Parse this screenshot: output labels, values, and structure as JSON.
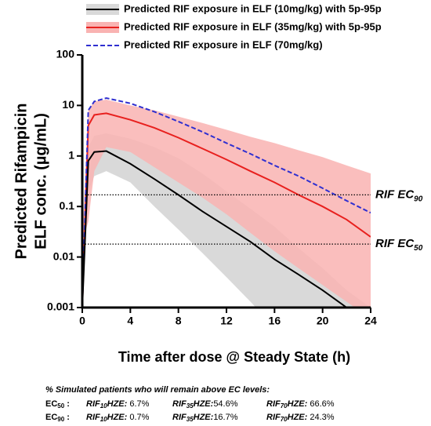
{
  "chart_data": {
    "type": "line",
    "ylabel": [
      "Predicted Rifampicin",
      "ELF conc. (µg/mL)"
    ],
    "xlabel": "Time after dose @ Steady State (h)",
    "log_y": true,
    "xlim": [
      0,
      24
    ],
    "xticks": [
      0,
      4,
      8,
      12,
      16,
      20,
      24
    ],
    "ylim": [
      0.001,
      100
    ],
    "yticks": [
      0.001,
      0.01,
      0.1,
      1,
      10,
      100
    ],
    "x": [
      0,
      0.5,
      1,
      2,
      4,
      6,
      8,
      10,
      12,
      14,
      16,
      18,
      20,
      22,
      24
    ],
    "series": [
      {
        "name": "Predicted RIF exposure in ELF (10mg/kg) with 5p-95p",
        "color": "#000000",
        "band_color": "#d9d9d9",
        "dash": false,
        "values": [
          0.001,
          0.8,
          1.2,
          1.25,
          0.7,
          0.35,
          0.17,
          0.08,
          0.04,
          0.02,
          0.009,
          0.0045,
          0.0022,
          0.001,
          null
        ],
        "lower": [
          0.001,
          0.2,
          0.4,
          0.5,
          0.3,
          0.1,
          0.035,
          0.012,
          0.004,
          0.0013,
          0.0004,
          0.00013,
          4e-05,
          1.3e-05,
          4e-06
        ],
        "upper": [
          0.001,
          1.5,
          2.5,
          2.8,
          2.2,
          1.5,
          0.9,
          0.45,
          0.2,
          0.09,
          0.04,
          0.015,
          0.006,
          0.0022,
          0.001
        ]
      },
      {
        "name": "Predicted RIF exposure in ELF (35mg/kg) with 5p-95p",
        "color": "#e8201e",
        "band_color": "#f9b3b2",
        "dash": false,
        "values": [
          0.001,
          4,
          6.5,
          7,
          5.2,
          3.6,
          2.3,
          1.4,
          0.85,
          0.5,
          0.3,
          0.17,
          0.1,
          0.055,
          0.025
        ],
        "lower": [
          0.02,
          0.05,
          0.5,
          1.5,
          1.2,
          0.6,
          0.3,
          0.15,
          0.07,
          0.03,
          0.013,
          0.006,
          0.0028,
          0.0013,
          0.0006
        ],
        "upper": [
          0.02,
          8,
          12,
          13,
          10,
          8,
          6,
          4.5,
          3.3,
          2.4,
          1.8,
          1.3,
          0.95,
          0.65,
          0.45
        ]
      },
      {
        "name": "Predicted RIF exposure in ELF (70mg/kg)",
        "color": "#2f2fd0",
        "dash": true,
        "values": [
          0.001,
          8,
          12,
          14,
          11,
          7.5,
          4.8,
          3,
          1.8,
          1.1,
          0.65,
          0.4,
          0.23,
          0.13,
          0.075
        ]
      }
    ],
    "reference_lines": [
      {
        "value": 0.17,
        "label": "RIF EC",
        "subscript": "90"
      },
      {
        "value": 0.018,
        "label": "RIF EC",
        "subscript": "50"
      }
    ]
  },
  "footer": {
    "title": "% Simulated patients who will remain above EC levels:",
    "rows": [
      {
        "label": "EC",
        "sub": "50",
        "colon": ":",
        "cells": [
          {
            "drug": "RIF",
            "sub": "10",
            "suffix": "HZE:",
            "value": " 6.7%"
          },
          {
            "drug": "RIF",
            "sub": "35",
            "suffix": "HZE:",
            "value": "54.6%"
          },
          {
            "drug": "RIF",
            "sub": "70",
            "suffix": "HZE:",
            "value": " 66.6%"
          }
        ]
      },
      {
        "label": "EC",
        "sub": "90",
        "colon": ":",
        "cells": [
          {
            "drug": "RIF",
            "sub": "10",
            "suffix": "HZE:",
            "value": " 0.7%"
          },
          {
            "drug": "RIF",
            "sub": "35",
            "suffix": "HZE:",
            "value": "16.7%"
          },
          {
            "drug": "RIF",
            "sub": "70",
            "suffix": "HZE:",
            "value": " 24.3%"
          }
        ]
      }
    ]
  }
}
